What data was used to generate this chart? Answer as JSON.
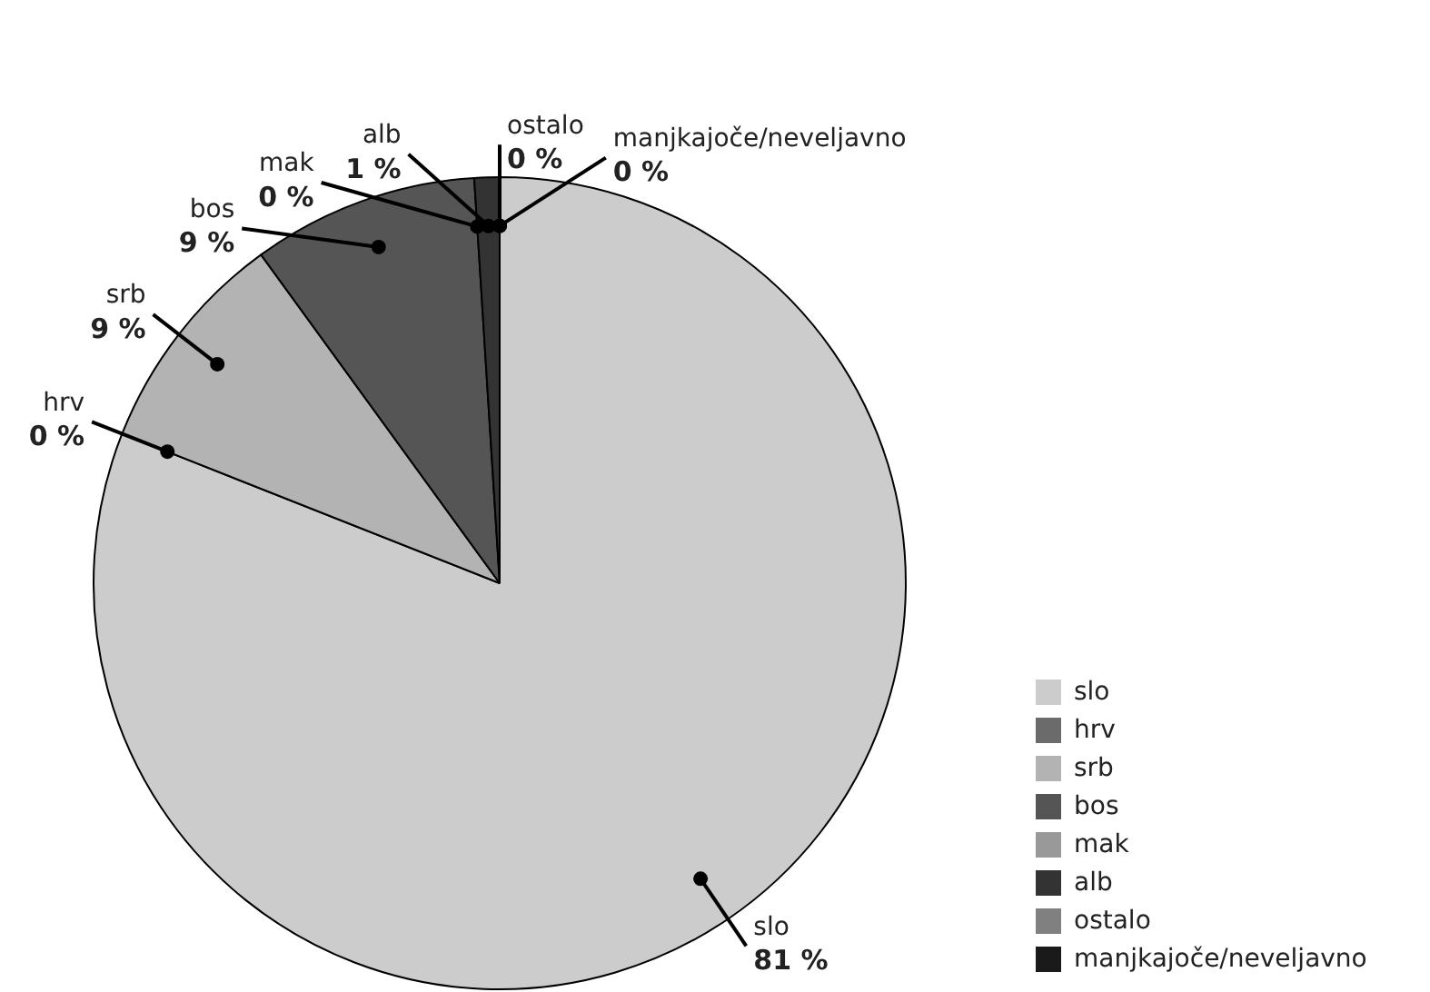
{
  "chart_data": {
    "type": "pie",
    "categories": [
      "slo",
      "hrv",
      "srb",
      "bos",
      "mak",
      "alb",
      "ostalo",
      "manjkajoče/neveljavno"
    ],
    "values": [
      81,
      0,
      9,
      9,
      0,
      1,
      0,
      0
    ],
    "value_labels": [
      "81 %",
      "0 %",
      "9 %",
      "9 %",
      "0 %",
      "1 %",
      "0 %",
      "0 %"
    ],
    "colors": [
      "#cccccc",
      "#6b6b6b",
      "#b3b3b3",
      "#555555",
      "#999999",
      "#333333",
      "#808080",
      "#1a1a1a"
    ],
    "legend": "bottom right"
  }
}
